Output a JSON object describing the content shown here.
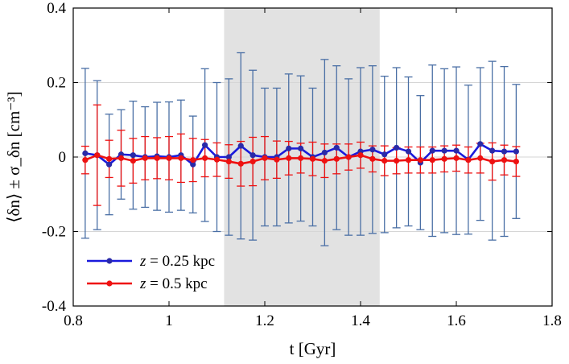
{
  "chart_data": {
    "type": "line",
    "title": "",
    "xlabel": "t [Gyr]",
    "ylabel": "⟨δn⟩ ± σ_δn [cm⁻³]",
    "xlim": [
      0.8,
      1.8
    ],
    "ylim": [
      -0.4,
      0.4
    ],
    "x_ticks": [
      0.8,
      1.0,
      1.2,
      1.4,
      1.6,
      1.8
    ],
    "x_tick_labels": [
      "0.8",
      "1",
      "1.2",
      "1.4",
      "1.6",
      "1.8"
    ],
    "y_ticks": [
      -0.4,
      -0.2,
      0,
      0.2,
      0.4
    ],
    "y_tick_labels": [
      "-0.4",
      "-0.2",
      "0",
      "0.2",
      "0.4"
    ],
    "grid": true,
    "shaded_region": {
      "x_start": 1.115,
      "x_end": 1.44,
      "color": "#e2e2e2"
    },
    "legend_position": "bottom-left",
    "x": [
      0.825,
      0.85,
      0.875,
      0.9,
      0.925,
      0.95,
      0.975,
      1.0,
      1.025,
      1.05,
      1.075,
      1.1,
      1.125,
      1.15,
      1.175,
      1.2,
      1.225,
      1.25,
      1.275,
      1.3,
      1.325,
      1.35,
      1.375,
      1.4,
      1.425,
      1.45,
      1.475,
      1.5,
      1.525,
      1.55,
      1.575,
      1.6,
      1.625,
      1.65,
      1.675,
      1.7,
      1.725
    ],
    "series": [
      {
        "name": "z = 0.25 kpc",
        "legend_prefix": "z",
        "legend_value": " = 0.25 kpc",
        "line_color": "#1a1adc",
        "marker_color": "#2a2aa8",
        "error_color": "#4a6fa5",
        "values": [
          0.01,
          0.005,
          -0.02,
          0.007,
          0.005,
          0.0,
          0.002,
          0.0,
          0.005,
          -0.02,
          0.032,
          0.0,
          0.0,
          0.03,
          0.005,
          0.0,
          0.0,
          0.023,
          0.023,
          0.0,
          0.012,
          0.025,
          0.0,
          0.015,
          0.02,
          0.007,
          0.025,
          0.015,
          -0.015,
          0.017,
          0.017,
          0.017,
          -0.007,
          0.035,
          0.017,
          0.015,
          0.015
        ],
        "errors": [
          0.228,
          0.2,
          0.135,
          0.12,
          0.145,
          0.135,
          0.145,
          0.148,
          0.148,
          0.13,
          0.205,
          0.2,
          0.21,
          0.25,
          0.228,
          0.185,
          0.185,
          0.2,
          0.195,
          0.185,
          0.25,
          0.22,
          0.21,
          0.225,
          0.225,
          0.21,
          0.215,
          0.2,
          0.18,
          0.23,
          0.22,
          0.225,
          0.2,
          0.205,
          0.24,
          0.228,
          0.18
        ]
      },
      {
        "name": "z = 0.5 kpc",
        "legend_prefix": "z",
        "legend_value": " = 0.5 kpc",
        "line_color": "#ee1111",
        "marker_color": "#ee1111",
        "error_color": "#ee1111",
        "values": [
          -0.008,
          0.005,
          -0.005,
          -0.003,
          -0.01,
          -0.003,
          -0.003,
          -0.003,
          -0.003,
          -0.008,
          -0.003,
          -0.007,
          -0.012,
          -0.018,
          -0.012,
          -0.003,
          -0.007,
          -0.003,
          -0.003,
          -0.005,
          -0.01,
          -0.005,
          0.0,
          0.005,
          -0.005,
          -0.01,
          -0.01,
          -0.008,
          -0.008,
          -0.008,
          -0.005,
          -0.003,
          -0.008,
          -0.003,
          -0.012,
          -0.008,
          -0.012
        ],
        "errors": [
          0.037,
          0.135,
          0.05,
          0.075,
          0.06,
          0.058,
          0.055,
          0.058,
          0.065,
          0.058,
          0.05,
          0.045,
          0.045,
          0.06,
          0.065,
          0.058,
          0.05,
          0.045,
          0.04,
          0.045,
          0.045,
          0.04,
          0.035,
          0.035,
          0.035,
          0.04,
          0.035,
          0.035,
          0.035,
          0.035,
          0.035,
          0.035,
          0.035,
          0.04,
          0.05,
          0.04,
          0.04
        ]
      }
    ]
  }
}
